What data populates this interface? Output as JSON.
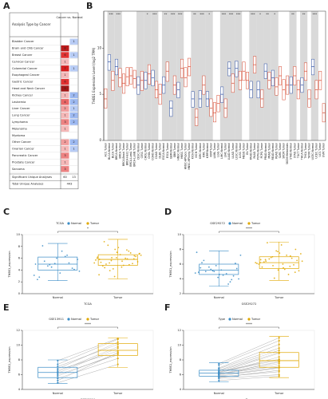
{
  "panel_labels": [
    "A",
    "B",
    "C",
    "D",
    "E",
    "F"
  ],
  "table": {
    "title": "Analysis Type by Cancer",
    "column_header": "Cancer vs. Normal",
    "rows": [
      {
        "label": "Bladder Cancer",
        "up": null,
        "down": 1
      },
      {
        "label": "Brain and CNS Cancer",
        "up": 8,
        "down": null
      },
      {
        "label": "Breast Cancer",
        "up": 6,
        "down": 1
      },
      {
        "label": "Cervical Cancer",
        "up": 1,
        "down": null
      },
      {
        "label": "Colorectal Cancer",
        "up": 7,
        "down": 1
      },
      {
        "label": "Esophageal Cancer",
        "up": 1,
        "down": null
      },
      {
        "label": "Gastric Cancer",
        "up": 6,
        "down": null
      },
      {
        "label": "Head and Neck Cancer",
        "up": 9,
        "down": null
      },
      {
        "label": "Kidney Cancer",
        "up": 1,
        "down": 2
      },
      {
        "label": "Leukemia",
        "up": 4,
        "down": 2
      },
      {
        "label": "Liver Cancer",
        "up": 2,
        "down": 1
      },
      {
        "label": "Lung Cancer",
        "up": 1,
        "down": 2
      },
      {
        "label": "Lymphoma",
        "up": 3,
        "down": 2
      },
      {
        "label": "Melanoma",
        "up": 1,
        "down": null
      },
      {
        "label": "Myeloma",
        "up": null,
        "down": null
      },
      {
        "label": "Other Cancer",
        "up": 2,
        "down": 2
      },
      {
        "label": "Ovarian Cancer",
        "up": 1,
        "down": 1
      },
      {
        "label": "Pancreatic Cancer",
        "up": 3,
        "down": null
      },
      {
        "label": "Prostate Cancer",
        "up": 1,
        "down": null
      },
      {
        "label": "Sarcoma",
        "up": 3,
        "down": null
      }
    ],
    "summary": [
      {
        "label": "Significant Unique Analyses",
        "values": [
          60,
          13
        ]
      },
      {
        "label": "Total Unique Analyses",
        "values": [
          443
        ]
      }
    ]
  },
  "chart_data": [
    {
      "type": "tcga-box",
      "ylabel": "THBS1 Expression Level (log2 TPM)",
      "normal_color": "#2d4fa3",
      "tumor_color": "#d6452c",
      "ylim": [
        0,
        14
      ],
      "yticks": [
        0,
        5,
        10
      ],
      "categories": [
        "ACC.Tumor",
        "BLCA.Normal",
        "BLCA.Tumor",
        "BRCA.Normal",
        "BRCA.Tumor",
        "BRCA-Basal.Tumor",
        "BRCA-Her2.Tumor",
        "BRCA-LumA.Tumor",
        "BRCA-LumB.Tumor",
        "CESC.Normal",
        "CESC.Tumor",
        "CHOL.Normal",
        "CHOL.Tumor",
        "COAD.Normal",
        "COAD.Tumor",
        "DLBC.Tumor",
        "ESCA.Normal",
        "ESCA.Tumor",
        "GBM.Normal",
        "GBM.Tumor",
        "HNSC.Normal",
        "HNSC.Tumor",
        "HNSC-HPVpos.Tumor",
        "HNSC-HPVneg.Tumor",
        "KICH.Normal",
        "KICH.Tumor",
        "KIRC.Normal",
        "KIRC.Tumor",
        "KIRP.Normal",
        "KIRP.Tumor",
        "LAML.Tumor",
        "LGG.Tumor",
        "LIHC.Normal",
        "LIHC.Tumor",
        "LUAD.Normal",
        "LUAD.Tumor",
        "LUSC.Normal",
        "LUSC.Tumor",
        "MESO.Tumor",
        "OV.Tumor",
        "PAAD.Normal",
        "PAAD.Tumor",
        "PCPG.Normal",
        "PCPG.Tumor",
        "PRAD.Normal",
        "PRAD.Tumor",
        "READ.Normal",
        "READ.Tumor",
        "SARC.Tumor",
        "SKCM.Tumor",
        "SKCM.Metastasis",
        "STAD.Normal",
        "STAD.Tumor",
        "TGCT.Tumor",
        "THCA.Normal",
        "THCA.Tumor",
        "THYM.Tumor",
        "UCEC.Normal",
        "UCEC.Tumor",
        "UCS.Tumor",
        "UVM.Tumor"
      ],
      "q1": [
        3.5,
        7.6,
        5.4,
        7.1,
        5.8,
        5.1,
        5.9,
        6.1,
        5.7,
        5.0,
        5.4,
        5.6,
        6.1,
        5.9,
        4.6,
        3.9,
        5.1,
        6.4,
        2.6,
        5.0,
        4.6,
        6.8,
        5.8,
        7.0,
        3.6,
        1.6,
        3.6,
        5.0,
        3.7,
        2.6,
        2.0,
        3.1,
        4.1,
        2.5,
        7.0,
        5.2,
        6.9,
        5.5,
        6.5,
        5.6,
        4.6,
        7.3,
        4.6,
        3.6,
        6.7,
        5.6,
        5.9,
        4.9,
        6.0,
        4.4,
        5.0,
        5.1,
        6.0,
        4.5,
        5.2,
        6.5,
        3.6,
        7.1,
        4.5,
        5.5,
        2.0
      ],
      "median": [
        4.5,
        8.5,
        6.5,
        8.0,
        6.8,
        6.2,
        6.9,
        7.0,
        6.7,
        6.0,
        6.5,
        6.5,
        7.2,
        6.8,
        5.5,
        5.0,
        6.0,
        7.5,
        3.5,
        6.0,
        5.5,
        7.8,
        6.8,
        8.0,
        4.5,
        2.5,
        4.5,
        6.0,
        4.5,
        3.5,
        3.0,
        4.0,
        5.0,
        3.5,
        7.8,
        6.2,
        7.8,
        6.5,
        7.5,
        6.5,
        5.5,
        8.2,
        5.5,
        4.5,
        7.5,
        6.5,
        6.8,
        5.8,
        7.0,
        5.5,
        6.0,
        6.0,
        7.0,
        5.5,
        6.0,
        7.5,
        4.5,
        8.0,
        5.5,
        6.5,
        3.0
      ],
      "q3": [
        5.6,
        9.3,
        7.5,
        8.8,
        7.8,
        7.2,
        7.9,
        7.9,
        7.6,
        6.9,
        7.5,
        7.4,
        8.2,
        7.6,
        6.4,
        6.1,
        6.9,
        8.5,
        4.3,
        7.0,
        6.3,
        8.8,
        7.9,
        8.9,
        5.3,
        3.4,
        5.4,
        7.0,
        5.3,
        4.5,
        4.1,
        4.9,
        5.8,
        4.5,
        8.5,
        7.2,
        8.6,
        7.5,
        8.5,
        7.4,
        6.4,
        9.1,
        6.4,
        5.5,
        8.3,
        7.4,
        7.6,
        6.8,
        8.0,
        6.6,
        7.0,
        6.9,
        8.0,
        6.5,
        6.8,
        8.4,
        5.5,
        8.8,
        6.5,
        7.5,
        4.0
      ],
      "significance": [
        null,
        "***",
        null,
        "***",
        null,
        null,
        null,
        null,
        null,
        null,
        null,
        "*",
        null,
        "***",
        null,
        null,
        "**",
        null,
        "***",
        null,
        "***",
        null,
        null,
        null,
        "**",
        null,
        "***",
        null,
        "*",
        null,
        null,
        null,
        "***",
        null,
        "***",
        null,
        "***",
        null,
        null,
        null,
        "***",
        null,
        "*",
        null,
        "**",
        null,
        "*",
        null,
        null,
        null,
        null,
        "**",
        null,
        null,
        "**",
        null,
        null,
        "***",
        null,
        null,
        null
      ]
    },
    {
      "type": "box-jitter",
      "legend_title": "TCGA",
      "xlabel": "TCGA",
      "ylabel": "THBS1_expression",
      "significance": "*",
      "ylim": [
        0,
        10
      ],
      "yticks": [
        0,
        2,
        4,
        6,
        8,
        10
      ],
      "series": [
        {
          "name": "Normal",
          "color": "#3a8cc6",
          "box": [
            2.2,
            4.0,
            5.0,
            6.2,
            8.5
          ],
          "values": [
            3.1,
            4.5,
            5.2,
            2.8,
            6.0,
            4.1,
            5.5,
            7.2,
            3.8,
            4.9,
            6.5,
            2.4,
            5.1,
            4.3,
            8.1,
            3.5,
            5.8,
            4.7,
            6.3,
            5.0
          ]
        },
        {
          "name": "Tumor",
          "color": "#e0a800",
          "box": [
            2.5,
            4.8,
            5.8,
            6.6,
            9.2
          ],
          "values": [
            5.2,
            6.1,
            4.9,
            5.8,
            7.0,
            6.4,
            4.4,
            5.5,
            6.8,
            3.9,
            5.9,
            6.2,
            7.5,
            5.1,
            4.7,
            6.6,
            5.4,
            8.2,
            6.0,
            5.7,
            4.2,
            6.9,
            5.3,
            7.8,
            6.3,
            5.0,
            4.8,
            6.5,
            5.6,
            7.2,
            3.2,
            6.1,
            5.9,
            8.8,
            4.5,
            6.7,
            5.2,
            7.4,
            6.0,
            2.9
          ]
        }
      ]
    },
    {
      "type": "box-jitter",
      "legend_title": "GSE29272",
      "xlabel": "GSE29272",
      "ylabel": "THBS1_expression",
      "significance": "****",
      "ylim": [
        2,
        10
      ],
      "yticks": [
        2,
        4,
        6,
        8,
        10
      ],
      "series": [
        {
          "name": "Normal",
          "color": "#3a8cc6",
          "box": [
            3.0,
            4.6,
            5.2,
            6.0,
            7.8
          ],
          "values": [
            4.8,
            5.1,
            3.6,
            5.5,
            4.2,
            6.1,
            5.0,
            4.5,
            7.2,
            5.3,
            3.3,
            4.9,
            5.8,
            4.4,
            6.5,
            5.2,
            4.0,
            5.6,
            4.7,
            7.6,
            5.0,
            3.9,
            6.2,
            4.6,
            5.4
          ]
        },
        {
          "name": "Tumor",
          "color": "#e0a800",
          "box": [
            3.8,
            5.4,
            6.2,
            7.0,
            9.0
          ],
          "values": [
            6.2,
            5.8,
            7.1,
            6.6,
            5.2,
            8.0,
            6.4,
            5.5,
            7.4,
            6.9,
            4.6,
            6.0,
            7.8,
            5.9,
            6.3,
            8.6,
            5.1,
            6.7,
            7.2,
            6.1,
            4.1,
            6.8,
            5.6,
            7.5,
            6.5,
            8.9,
            5.3,
            6.4,
            7.0,
            5.7,
            6.2,
            7.7,
            4.9,
            6.6,
            6.0
          ]
        }
      ]
    },
    {
      "type": "paired",
      "legend_title": "GSE13911",
      "xlabel": "GSE13911",
      "ylabel": "THBS1_expression",
      "significance": "****",
      "ylim": [
        4,
        12
      ],
      "yticks": [
        4,
        6,
        8,
        10,
        12
      ],
      "series": [
        {
          "name": "Normal",
          "color": "#3a8cc6",
          "box": [
            4.8,
            5.6,
            6.3,
            7.0,
            8.0
          ],
          "values": [
            5.2,
            6.0,
            6.8,
            5.5,
            7.4,
            6.2,
            4.9,
            6.6,
            7.9,
            5.8,
            6.4,
            7.1
          ]
        },
        {
          "name": "Tumor",
          "color": "#e0a800",
          "box": [
            7.0,
            8.6,
            9.3,
            10.2,
            11.0
          ],
          "values": [
            9.0,
            8.7,
            10.4,
            8.2,
            10.8,
            9.6,
            7.4,
            9.2,
            10.9,
            8.9,
            9.8,
            10.1
          ]
        }
      ]
    },
    {
      "type": "paired",
      "legend_title": "Type",
      "xlabel": "Type",
      "ylabel": "THBS1_expression",
      "significance": "****",
      "ylim": [
        4,
        12
      ],
      "yticks": [
        4,
        6,
        8,
        10,
        12
      ],
      "series": [
        {
          "name": "Normal",
          "color": "#3a8cc6",
          "box": [
            5.0,
            5.8,
            6.2,
            6.6,
            7.6
          ],
          "values": [
            6.0,
            6.3,
            5.7,
            6.8,
            6.1,
            5.5,
            6.4,
            7.3,
            5.9,
            6.2,
            6.6,
            5.2,
            6.0,
            6.9,
            5.8,
            6.3,
            7.5,
            6.1,
            5.6,
            6.5
          ]
        },
        {
          "name": "Tumor",
          "color": "#e0a800",
          "box": [
            5.6,
            7.0,
            7.9,
            9.0,
            11.2
          ],
          "values": [
            7.8,
            8.9,
            6.4,
            9.6,
            7.2,
            6.0,
            8.1,
            10.6,
            7.0,
            8.4,
            9.3,
            5.8,
            7.5,
            10.1,
            6.9,
            8.0,
            11.0,
            7.7,
            6.6,
            9.0
          ]
        }
      ]
    }
  ]
}
